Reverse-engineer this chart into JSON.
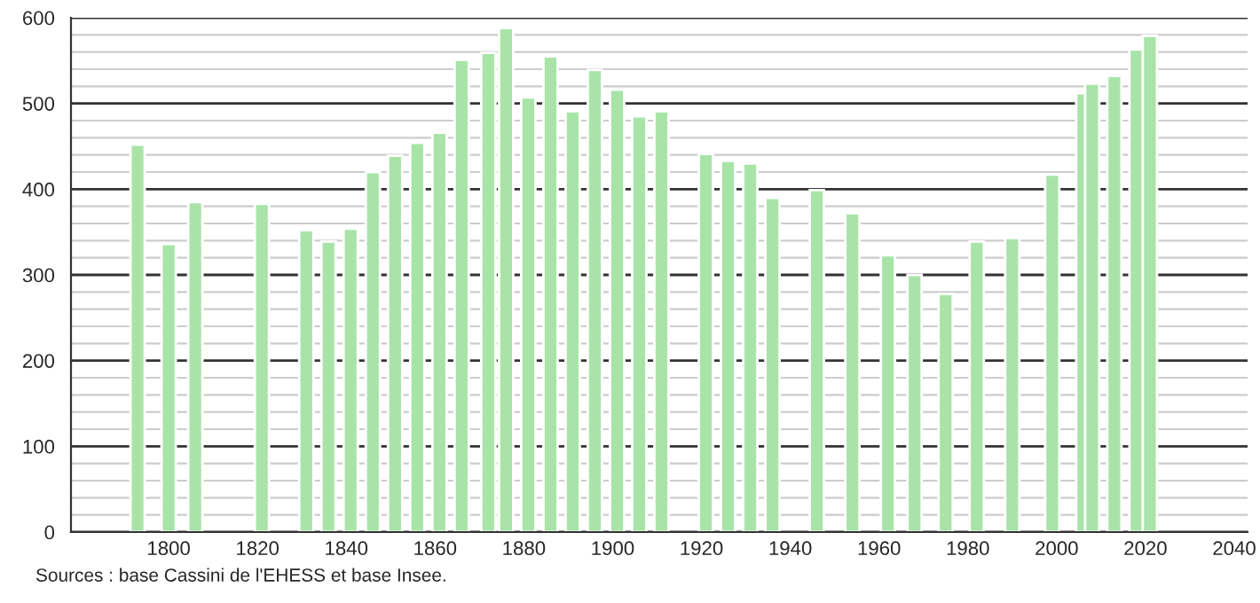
{
  "chart_data": {
    "type": "bar",
    "x": [
      1793,
      1800,
      1806,
      1821,
      1831,
      1836,
      1841,
      1846,
      1851,
      1856,
      1861,
      1866,
      1872,
      1876,
      1881,
      1886,
      1891,
      1896,
      1901,
      1906,
      1911,
      1921,
      1926,
      1931,
      1936,
      1946,
      1954,
      1962,
      1968,
      1975,
      1982,
      1990,
      1999,
      2006,
      2008,
      2013,
      2018,
      2021
    ],
    "values": [
      452,
      336,
      385,
      383,
      352,
      339,
      354,
      420,
      439,
      454,
      466,
      551,
      559,
      588,
      507,
      555,
      491,
      539,
      516,
      485,
      491,
      441,
      433,
      430,
      390,
      399,
      372,
      323,
      300,
      278,
      339,
      343,
      417,
      512,
      523,
      532,
      563,
      579
    ],
    "color": "#a8e4a8",
    "xlim": [
      1778,
      2043
    ],
    "xticks": [
      1800,
      1820,
      1840,
      1860,
      1880,
      1900,
      1920,
      1940,
      1960,
      1980,
      2000,
      2020,
      2040
    ],
    "ylim": [
      0,
      600
    ],
    "yticks": [
      0,
      {
        "value": 20,
        "label": null
      },
      {
        "value": 40,
        "label": null
      },
      {
        "value": 60,
        "label": null
      },
      {
        "value": 80,
        "label": null
      },
      100,
      {
        "value": 120,
        "label": null
      },
      {
        "value": 140,
        "label": null
      },
      {
        "value": 160,
        "label": null
      },
      {
        "value": 180,
        "label": null
      },
      200,
      {
        "value": 220,
        "label": null
      },
      {
        "value": 240,
        "label": null
      },
      {
        "value": 260,
        "label": null
      },
      {
        "value": 280,
        "label": null
      },
      300,
      {
        "value": 320,
        "label": null
      },
      {
        "value": 340,
        "label": null
      },
      {
        "value": 360,
        "label": null
      },
      {
        "value": 380,
        "label": null
      },
      400,
      {
        "value": 420,
        "label": null
      },
      {
        "value": 440,
        "label": null
      },
      {
        "value": 460,
        "label": null
      },
      {
        "value": 480,
        "label": null
      },
      500,
      {
        "value": 520,
        "label": null
      },
      {
        "value": 540,
        "label": null
      },
      {
        "value": 560,
        "label": null
      },
      {
        "value": 580,
        "label": null
      },
      600
    ],
    "grid": "y",
    "annotations": [
      "Sources : base Cassini de l'EHESS et base Insee."
    ]
  }
}
